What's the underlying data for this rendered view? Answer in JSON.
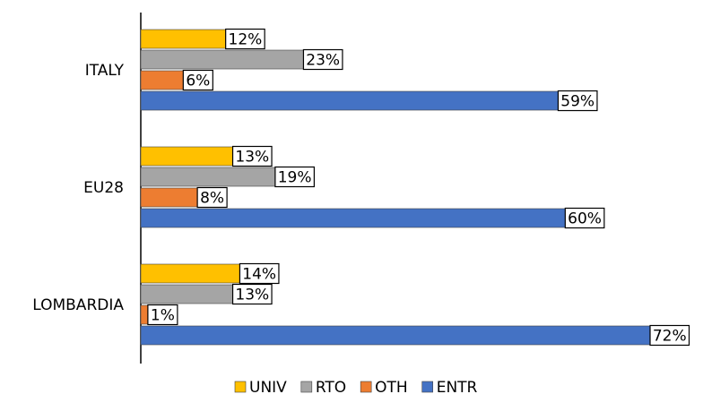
{
  "chart_data": {
    "type": "bar",
    "orientation": "horizontal",
    "categories": [
      "ITALY",
      "EU28",
      "LOMBARDIA"
    ],
    "series": [
      {
        "name": "UNIV",
        "color": "#ffc000",
        "values": [
          12,
          13,
          14
        ],
        "value_labels": [
          "12%",
          "13%",
          "14%"
        ]
      },
      {
        "name": "RTO",
        "color": "#a5a5a5",
        "values": [
          23,
          19,
          13
        ],
        "value_labels": [
          "23%",
          "19%",
          "13%"
        ]
      },
      {
        "name": "OTH",
        "color": "#ed7d31",
        "values": [
          6,
          8,
          1
        ],
        "value_labels": [
          "6%",
          "8%",
          "1%"
        ]
      },
      {
        "name": "ENTR",
        "color": "#4472c4",
        "values": [
          59,
          60,
          72
        ],
        "value_labels": [
          "59%",
          "60%",
          "72%"
        ]
      }
    ],
    "xlim": [
      0,
      72
    ]
  }
}
